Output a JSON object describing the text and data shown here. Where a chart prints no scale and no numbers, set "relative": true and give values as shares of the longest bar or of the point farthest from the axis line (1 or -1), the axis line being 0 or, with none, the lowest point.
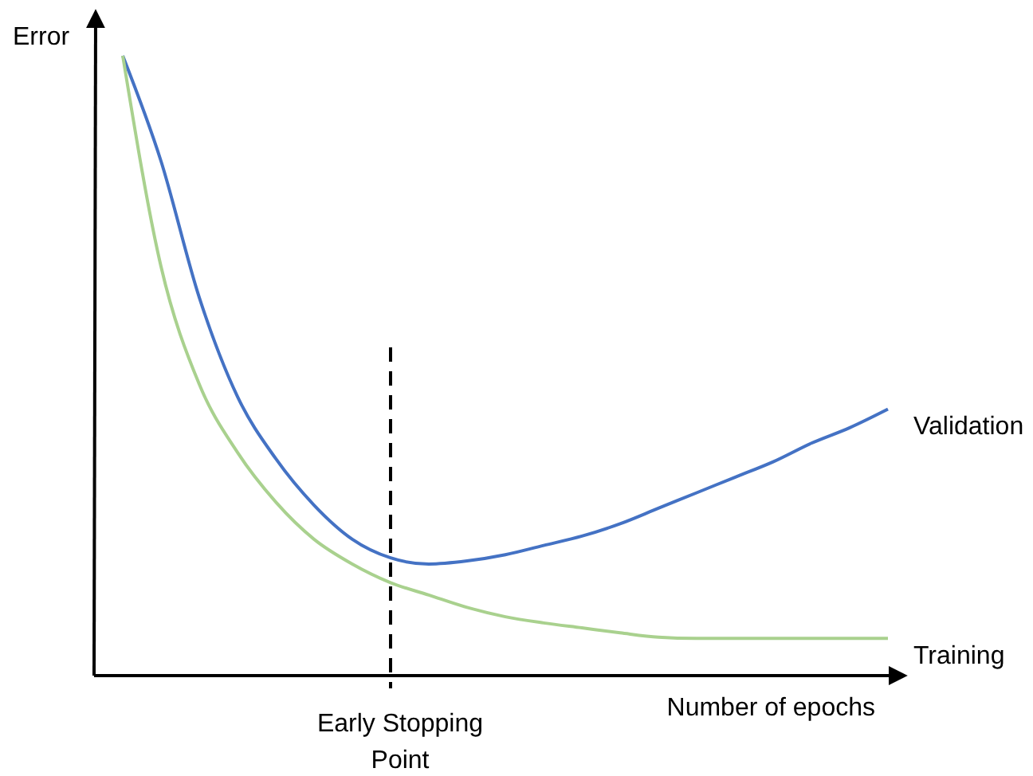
{
  "chart_data": {
    "type": "line",
    "relative": true,
    "xlabel": "Number of epochs",
    "ylabel": "Error",
    "categories": [
      null,
      null,
      null,
      null,
      null,
      null,
      null,
      null,
      null,
      null,
      null,
      null,
      null,
      null,
      null,
      null,
      null,
      null,
      null,
      null,
      null
    ],
    "series": [
      {
        "name": "Validation",
        "color": "#4472c4",
        "values": [
          1.0,
          0.83,
          0.61,
          0.45,
          0.35,
          0.275,
          0.22,
          0.19,
          0.18,
          0.185,
          0.195,
          0.21,
          0.225,
          0.245,
          0.27,
          0.295,
          0.32,
          0.345,
          0.375,
          0.4,
          0.43
        ]
      },
      {
        "name": "Training",
        "color": "#a9d18e",
        "values": [
          1.0,
          0.66,
          0.47,
          0.36,
          0.28,
          0.22,
          0.18,
          0.15,
          0.13,
          0.11,
          0.095,
          0.085,
          0.077,
          0.069,
          0.062,
          0.06,
          0.06,
          0.06,
          0.06,
          0.06,
          0.06
        ]
      }
    ],
    "annotations": [
      "Early Stopping Point"
    ],
    "marker": "none",
    "line_style": "solid"
  }
}
